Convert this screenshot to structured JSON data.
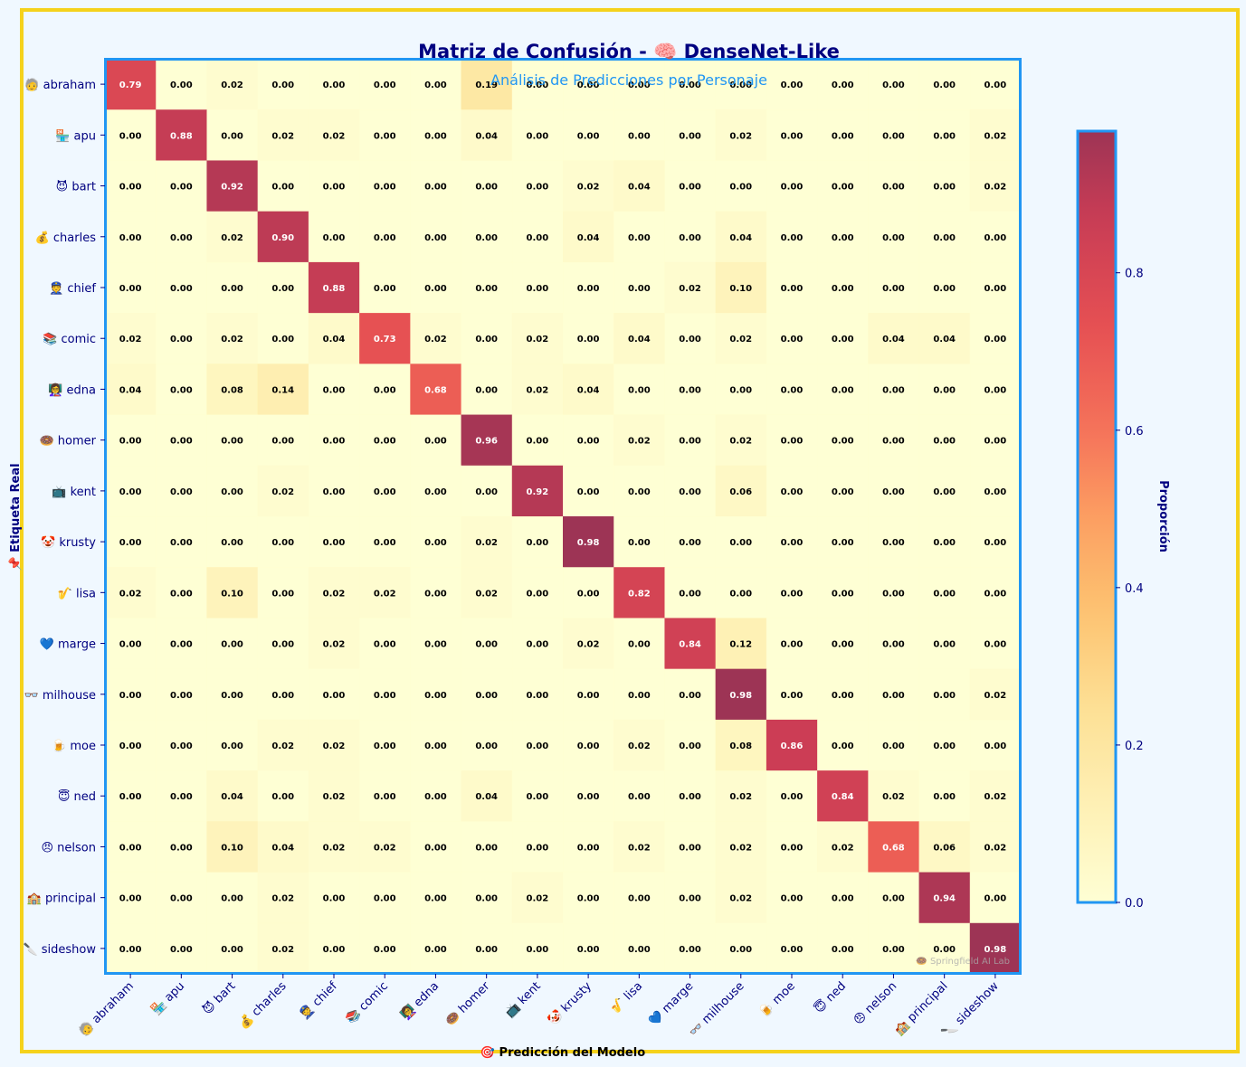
{
  "chart_data": {
    "type": "heatmap",
    "title": "Matriz de Confusión - 🧠 DenseNet-Like",
    "subtitle": "Análisis de Predicciones por Personaje",
    "xlabel": "🎯 Predicción del Modelo",
    "ylabel": "📌 Etiqueta Real",
    "colorbar_label": "Proporción",
    "colorbar_ticks": [
      "0.0",
      "0.2",
      "0.4",
      "0.6",
      "0.8"
    ],
    "colorbar_range": [
      0,
      0.98
    ],
    "colormap": "YlOrRd-like (light yellow → orange → red → dark crimson)",
    "watermark": "🍩 Springfield AI Lab",
    "row_labels": [
      "🧓 abraham",
      "🏪 apu",
      "😈 bart",
      "💰 charles",
      "👮 chief",
      "📚 comic",
      "👩‍🏫 edna",
      "🍩 homer",
      "📺 kent",
      "🤡 krusty",
      "🎷 lisa",
      "💙 marge",
      "👓 milhouse",
      "🍺 moe",
      "😇 ned",
      "😠 nelson",
      "🏫 principal",
      "🔪 sideshow"
    ],
    "col_labels": [
      "🧓 abraham",
      "🏪 apu",
      "😈 bart",
      "💰 charles",
      "👮 chief",
      "📚 comic",
      "👩‍🏫 edna",
      "🍩 homer",
      "📺 kent",
      "🤡 krusty",
      "🎷 lisa",
      "💙 marge",
      "👓 milhouse",
      "🍺 moe",
      "😇 ned",
      "😠 nelson",
      "🏫 principal",
      "🔪 sideshow"
    ],
    "matrix": [
      [
        0.79,
        0.0,
        0.02,
        0.0,
        0.0,
        0.0,
        0.0,
        0.19,
        0.0,
        0.0,
        0.0,
        0.0,
        0.0,
        0.0,
        0.0,
        0.0,
        0.0,
        0.0
      ],
      [
        0.0,
        0.88,
        0.0,
        0.02,
        0.02,
        0.0,
        0.0,
        0.04,
        0.0,
        0.0,
        0.0,
        0.0,
        0.02,
        0.0,
        0.0,
        0.0,
        0.0,
        0.02
      ],
      [
        0.0,
        0.0,
        0.92,
        0.0,
        0.0,
        0.0,
        0.0,
        0.0,
        0.0,
        0.02,
        0.04,
        0.0,
        0.0,
        0.0,
        0.0,
        0.0,
        0.0,
        0.02
      ],
      [
        0.0,
        0.0,
        0.02,
        0.9,
        0.0,
        0.0,
        0.0,
        0.0,
        0.0,
        0.04,
        0.0,
        0.0,
        0.04,
        0.0,
        0.0,
        0.0,
        0.0,
        0.0
      ],
      [
        0.0,
        0.0,
        0.0,
        0.0,
        0.88,
        0.0,
        0.0,
        0.0,
        0.0,
        0.0,
        0.0,
        0.02,
        0.1,
        0.0,
        0.0,
        0.0,
        0.0,
        0.0
      ],
      [
        0.02,
        0.0,
        0.02,
        0.0,
        0.04,
        0.73,
        0.02,
        0.0,
        0.02,
        0.0,
        0.04,
        0.0,
        0.02,
        0.0,
        0.0,
        0.04,
        0.04,
        0.0
      ],
      [
        0.04,
        0.0,
        0.08,
        0.14,
        0.0,
        0.0,
        0.68,
        0.0,
        0.02,
        0.04,
        0.0,
        0.0,
        0.0,
        0.0,
        0.0,
        0.0,
        0.0,
        0.0
      ],
      [
        0.0,
        0.0,
        0.0,
        0.0,
        0.0,
        0.0,
        0.0,
        0.96,
        0.0,
        0.0,
        0.02,
        0.0,
        0.02,
        0.0,
        0.0,
        0.0,
        0.0,
        0.0
      ],
      [
        0.0,
        0.0,
        0.0,
        0.02,
        0.0,
        0.0,
        0.0,
        0.0,
        0.92,
        0.0,
        0.0,
        0.0,
        0.06,
        0.0,
        0.0,
        0.0,
        0.0,
        0.0
      ],
      [
        0.0,
        0.0,
        0.0,
        0.0,
        0.0,
        0.0,
        0.0,
        0.02,
        0.0,
        0.98,
        0.0,
        0.0,
        0.0,
        0.0,
        0.0,
        0.0,
        0.0,
        0.0
      ],
      [
        0.02,
        0.0,
        0.1,
        0.0,
        0.02,
        0.02,
        0.0,
        0.02,
        0.0,
        0.0,
        0.82,
        0.0,
        0.0,
        0.0,
        0.0,
        0.0,
        0.0,
        0.0
      ],
      [
        0.0,
        0.0,
        0.0,
        0.0,
        0.02,
        0.0,
        0.0,
        0.0,
        0.0,
        0.02,
        0.0,
        0.84,
        0.12,
        0.0,
        0.0,
        0.0,
        0.0,
        0.0
      ],
      [
        0.0,
        0.0,
        0.0,
        0.0,
        0.0,
        0.0,
        0.0,
        0.0,
        0.0,
        0.0,
        0.0,
        0.0,
        0.98,
        0.0,
        0.0,
        0.0,
        0.0,
        0.02
      ],
      [
        0.0,
        0.0,
        0.0,
        0.02,
        0.02,
        0.0,
        0.0,
        0.0,
        0.0,
        0.0,
        0.02,
        0.0,
        0.08,
        0.86,
        0.0,
        0.0,
        0.0,
        0.0
      ],
      [
        0.0,
        0.0,
        0.04,
        0.0,
        0.02,
        0.0,
        0.0,
        0.04,
        0.0,
        0.0,
        0.0,
        0.0,
        0.02,
        0.0,
        0.84,
        0.02,
        0.0,
        0.02
      ],
      [
        0.0,
        0.0,
        0.1,
        0.04,
        0.02,
        0.02,
        0.0,
        0.0,
        0.0,
        0.0,
        0.02,
        0.0,
        0.02,
        0.0,
        0.02,
        0.68,
        0.06,
        0.02
      ],
      [
        0.0,
        0.0,
        0.0,
        0.02,
        0.0,
        0.0,
        0.0,
        0.0,
        0.02,
        0.0,
        0.0,
        0.0,
        0.02,
        0.0,
        0.0,
        0.0,
        0.94,
        0.0
      ],
      [
        0.0,
        0.0,
        0.0,
        0.02,
        0.0,
        0.0,
        0.0,
        0.0,
        0.0,
        0.0,
        0.0,
        0.0,
        0.0,
        0.0,
        0.0,
        0.0,
        0.0,
        0.98
      ]
    ]
  },
  "colors": {
    "background": "#f0f8ff",
    "frame_border": "#f5d21c",
    "plot_border": "#2196f3",
    "title": "#000080",
    "subtitle": "#2196f3",
    "tick_text": "#000080",
    "cell_text_dark": "#000000",
    "cell_text_light": "#ffffff",
    "watermark": "#aaaaaa"
  }
}
